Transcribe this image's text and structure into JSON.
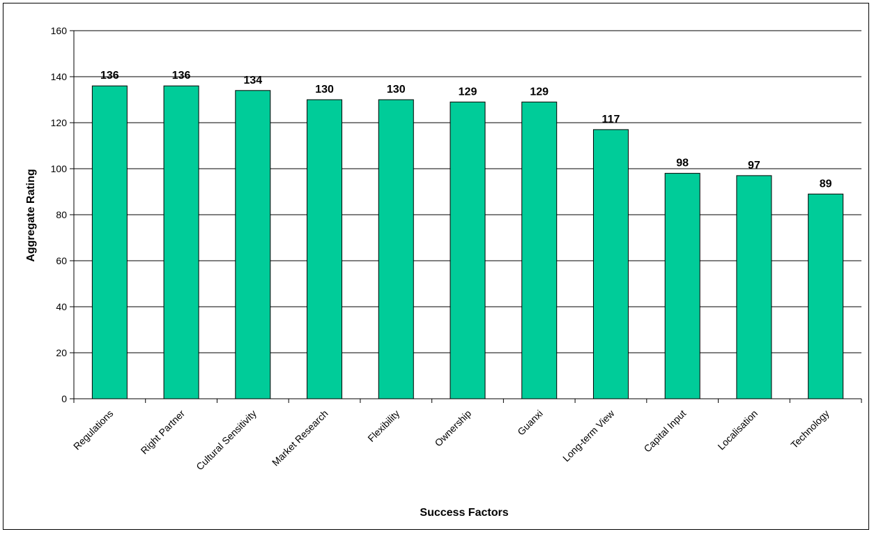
{
  "chart_data": {
    "type": "bar",
    "title": "",
    "xlabel": "Success Factors",
    "ylabel": "Aggregate Rating",
    "ylim": [
      0,
      160
    ],
    "yticks": [
      0,
      20,
      40,
      60,
      80,
      100,
      120,
      140,
      160
    ],
    "grid": true,
    "legend": "none",
    "categories": [
      "Regulations",
      "Right Partner",
      "Cultural Sensitivity",
      "Market Research",
      "Flexibility",
      "Ownership",
      "Guanxi",
      "Long-term View",
      "Capital Input",
      "Localisation",
      "Technology"
    ],
    "values": [
      136,
      136,
      134,
      130,
      130,
      129,
      129,
      117,
      98,
      97,
      89
    ],
    "bar_color": "#00CC99"
  }
}
